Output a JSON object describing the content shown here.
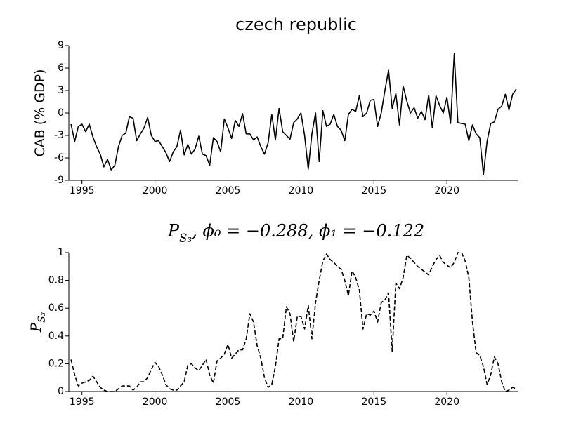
{
  "chart_data": [
    {
      "type": "line",
      "title": [
        "czech republic"
      ],
      "ylabel": [
        "CAB (% GDP)"
      ],
      "color": "#000000",
      "linestyle": "solid",
      "x": [
        1994.25,
        1994.5,
        1994.75,
        1995,
        1995.25,
        1995.5,
        1995.75,
        1996,
        1996.25,
        1996.5,
        1996.75,
        1997,
        1997.25,
        1997.5,
        1997.75,
        1998,
        1998.25,
        1998.5,
        1998.75,
        1999,
        1999.25,
        1999.5,
        1999.75,
        2000,
        2000.25,
        2000.5,
        2000.75,
        2001,
        2001.25,
        2001.5,
        2001.75,
        2002,
        2002.25,
        2002.5,
        2002.75,
        2003,
        2003.25,
        2003.5,
        2003.75,
        2004,
        2004.25,
        2004.5,
        2004.75,
        2005,
        2005.25,
        2005.5,
        2005.75,
        2006,
        2006.25,
        2006.5,
        2006.75,
        2007,
        2007.25,
        2007.5,
        2007.75,
        2008,
        2008.25,
        2008.5,
        2008.75,
        2009,
        2009.25,
        2009.5,
        2009.75,
        2010,
        2010.25,
        2010.5,
        2010.75,
        2011,
        2011.25,
        2011.5,
        2011.75,
        2012,
        2012.25,
        2012.5,
        2012.75,
        2013,
        2013.25,
        2013.5,
        2013.75,
        2014,
        2014.25,
        2014.5,
        2014.75,
        2015,
        2015.25,
        2015.5,
        2015.75,
        2016,
        2016.25,
        2016.5,
        2016.75,
        2017,
        2017.25,
        2017.5,
        2017.75,
        2018,
        2018.25,
        2018.5,
        2018.75,
        2019,
        2019.25,
        2019.5,
        2019.75,
        2020,
        2020.25,
        2020.5,
        2020.75,
        2021,
        2021.25,
        2021.5,
        2021.75,
        2022,
        2022.25,
        2022.5,
        2022.75,
        2023,
        2023.25,
        2023.5,
        2023.75,
        2024,
        2024.25,
        2024.5,
        2024.75
      ],
      "values": [
        -1.5,
        -3.8,
        -1.8,
        -1.5,
        -2.5,
        -1.5,
        -3.2,
        -4.5,
        -5.5,
        -7.2,
        -6.2,
        -7.6,
        -7.0,
        -4.5,
        -3.0,
        -2.7,
        -0.5,
        -0.7,
        -3.7,
        -2.8,
        -2.0,
        -0.6,
        -3.0,
        -3.8,
        -3.7,
        -4.5,
        -5.3,
        -6.5,
        -5.2,
        -4.5,
        -2.3,
        -5.6,
        -4.2,
        -5.5,
        -4.8,
        -3.1,
        -5.5,
        -5.7,
        -7.0,
        -3.3,
        -3.8,
        -5.2,
        -0.8,
        -2.0,
        -3.4,
        -1.0,
        -1.8,
        -0.1,
        -2.8,
        -2.8,
        -3.6,
        -3.2,
        -4.5,
        -5.5,
        -4.0,
        -0.2,
        -3.6,
        0.6,
        -2.5,
        -3.0,
        -3.5,
        -1.3,
        -0.8,
        0.0,
        -3.0,
        -7.5,
        -2.8,
        0.0,
        -6.5,
        0.3,
        -1.8,
        -1.5,
        -0.2,
        -1.8,
        -2.3,
        -3.7,
        -0.2,
        0.5,
        0.2,
        2.3,
        -0.5,
        0.0,
        1.7,
        1.8,
        -1.8,
        0.0,
        3.0,
        5.7,
        0.6,
        2.6,
        -1.6,
        3.6,
        1.6,
        0.0,
        0.7,
        -0.7,
        0.2,
        -0.9,
        2.4,
        -2.0,
        2.3,
        1.0,
        0.0,
        2.1,
        -1.4,
        7.9,
        -1.3,
        -1.4,
        -1.5,
        -3.7,
        -1.6,
        -2.8,
        -3.3,
        -8.2,
        -3.8,
        -1.4,
        -1.2,
        0.5,
        0.9,
        2.5,
        0.4,
        2.5,
        3.2
      ],
      "xlim": [
        1994.1,
        2024.85
      ],
      "ylim": [
        -9,
        9
      ],
      "xticks": [
        1995,
        2000,
        2005,
        2010,
        2015,
        2020
      ],
      "yticks": [
        -9,
        -6,
        -3,
        0,
        3,
        6,
        9
      ]
    },
    {
      "type": "line",
      "title": [
        "P",
        "S₃",
        ", ϕ₀ = −0.288, ϕ₁ = −0.122"
      ],
      "ylabel": [
        "P",
        "S₃"
      ],
      "color": "#000000",
      "linestyle": "dashed",
      "x": [
        1994.25,
        1994.5,
        1994.75,
        1995,
        1995.25,
        1995.5,
        1995.75,
        1996,
        1996.25,
        1996.5,
        1996.75,
        1997,
        1997.25,
        1997.5,
        1997.75,
        1998,
        1998.25,
        1998.5,
        1998.75,
        1999,
        1999.25,
        1999.5,
        1999.75,
        2000,
        2000.25,
        2000.5,
        2000.75,
        2001,
        2001.25,
        2001.5,
        2001.75,
        2002,
        2002.25,
        2002.5,
        2002.75,
        2003,
        2003.25,
        2003.5,
        2003.75,
        2004,
        2004.25,
        2004.5,
        2004.75,
        2005,
        2005.25,
        2005.5,
        2005.75,
        2006,
        2006.25,
        2006.5,
        2006.75,
        2007,
        2007.25,
        2007.5,
        2007.75,
        2008,
        2008.25,
        2008.5,
        2008.75,
        2009,
        2009.25,
        2009.5,
        2009.75,
        2010,
        2010.25,
        2010.5,
        2010.75,
        2011,
        2011.25,
        2011.5,
        2011.75,
        2012,
        2012.25,
        2012.5,
        2012.75,
        2013,
        2013.25,
        2013.5,
        2013.75,
        2014,
        2014.25,
        2014.5,
        2014.75,
        2015,
        2015.25,
        2015.5,
        2015.75,
        2016,
        2016.25,
        2016.5,
        2016.75,
        2017,
        2017.25,
        2017.5,
        2017.75,
        2018,
        2018.25,
        2018.5,
        2018.75,
        2019,
        2019.25,
        2019.5,
        2019.75,
        2020,
        2020.25,
        2020.5,
        2020.75,
        2021,
        2021.25,
        2021.5,
        2021.75,
        2022,
        2022.25,
        2022.5,
        2022.75,
        2023,
        2023.25,
        2023.5,
        2023.75,
        2024,
        2024.25,
        2024.5,
        2024.75
      ],
      "values": [
        0.23,
        0.12,
        0.04,
        0.06,
        0.07,
        0.08,
        0.11,
        0.07,
        0.03,
        0.01,
        0.0,
        0.0,
        0.0,
        0.02,
        0.04,
        0.04,
        0.04,
        0.01,
        0.03,
        0.07,
        0.07,
        0.1,
        0.16,
        0.21,
        0.18,
        0.12,
        0.05,
        0.02,
        0.01,
        0.01,
        0.04,
        0.07,
        0.19,
        0.2,
        0.17,
        0.15,
        0.19,
        0.23,
        0.12,
        0.06,
        0.22,
        0.24,
        0.27,
        0.34,
        0.24,
        0.27,
        0.3,
        0.3,
        0.38,
        0.56,
        0.5,
        0.33,
        0.24,
        0.1,
        0.03,
        0.05,
        0.18,
        0.38,
        0.38,
        0.61,
        0.56,
        0.36,
        0.54,
        0.54,
        0.45,
        0.62,
        0.38,
        0.64,
        0.8,
        0.94,
        0.99,
        0.95,
        0.93,
        0.9,
        0.88,
        0.8,
        0.69,
        0.87,
        0.82,
        0.73,
        0.45,
        0.56,
        0.55,
        0.58,
        0.5,
        0.64,
        0.66,
        0.71,
        0.29,
        0.78,
        0.74,
        0.82,
        0.98,
        0.96,
        0.93,
        0.9,
        0.88,
        0.86,
        0.84,
        0.9,
        0.95,
        0.98,
        0.93,
        0.91,
        0.89,
        0.93,
        1.0,
        1.0,
        0.94,
        0.82,
        0.5,
        0.28,
        0.26,
        0.18,
        0.05,
        0.12,
        0.25,
        0.2,
        0.07,
        0.0,
        0.01,
        0.03,
        0.02
      ],
      "xlim": [
        1994.1,
        2024.85
      ],
      "ylim": [
        0,
        1
      ],
      "xticks": [
        1995,
        2000,
        2005,
        2010,
        2015,
        2020
      ],
      "yticks": [
        0,
        0.2,
        0.4,
        0.6,
        0.8,
        1
      ]
    }
  ]
}
